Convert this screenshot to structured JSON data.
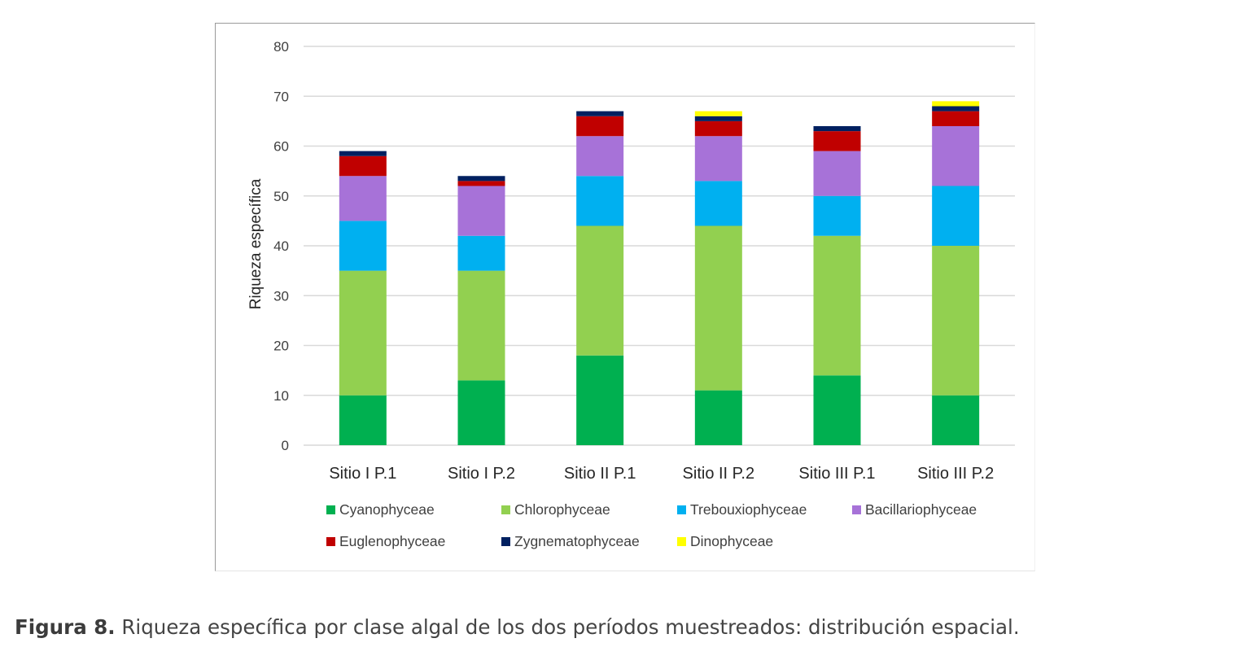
{
  "chart_data": {
    "type": "bar",
    "stacked": true,
    "title": "",
    "xlabel": "",
    "ylabel": "Riqueza específica",
    "ylim": [
      0,
      80
    ],
    "yticks": [
      0,
      10,
      20,
      30,
      40,
      50,
      60,
      70,
      80
    ],
    "grid": true,
    "legend_position": "bottom",
    "categories": [
      "Sitio I P.1",
      "Sitio I P.2",
      "Sitio II P.1",
      "Sitio II P.2",
      "Sitio III P.1",
      "Sitio III P.2"
    ],
    "series": [
      {
        "name": "Cyanophyceae",
        "color": "#00b050",
        "values": [
          10,
          13,
          18,
          11,
          14,
          10
        ]
      },
      {
        "name": "Chlorophyceae",
        "color": "#92d050",
        "values": [
          25,
          22,
          26,
          33,
          28,
          30
        ]
      },
      {
        "name": "Trebouxiophyceae",
        "color": "#00b0f0",
        "values": [
          10,
          7,
          10,
          9,
          8,
          12
        ]
      },
      {
        "name": "Bacillariophyceae",
        "color": "#a772d8",
        "values": [
          9,
          10,
          8,
          9,
          9,
          12
        ]
      },
      {
        "name": "Euglenophyceae",
        "color": "#c00000",
        "values": [
          4,
          1,
          4,
          3,
          4,
          3
        ]
      },
      {
        "name": "Zygnematophyceae",
        "color": "#002060",
        "values": [
          1,
          1,
          1,
          1,
          1,
          1
        ]
      },
      {
        "name": "Dinophyceae",
        "color": "#ffff00",
        "values": [
          0,
          0,
          0,
          1,
          0,
          1
        ]
      }
    ]
  },
  "caption": {
    "label": "Figura 8.",
    "text": " Riqueza específica por clase algal de los dos períodos muestreados: distribución espacial."
  }
}
